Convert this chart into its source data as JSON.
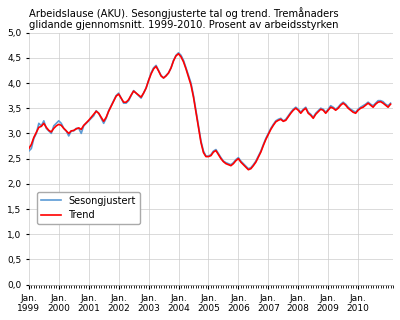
{
  "title": "Arbeidslause (AKU). Sesongjusterte tal og trend. Tremånaders\nglidande gjennomsnitt. 1999-2010. Prosent av arbeidsstyrken",
  "xlabel_years": [
    1999,
    2000,
    2001,
    2002,
    2003,
    2004,
    2005,
    2006,
    2007,
    2008,
    2009,
    2010
  ],
  "ylim": [
    0.0,
    5.0
  ],
  "yticks": [
    0.0,
    0.5,
    1.0,
    1.5,
    2.0,
    2.5,
    3.0,
    3.5,
    4.0,
    4.5,
    5.0
  ],
  "legend_labels": [
    "Sesongjustert",
    "Trend"
  ],
  "line_color_season": "#5B9BD5",
  "line_color_trend": "#FF0000",
  "background_color": "#FFFFFF",
  "grid_color": "#CCCCCC",
  "sesongjustert": [
    2.65,
    2.7,
    2.9,
    3.0,
    3.2,
    3.15,
    3.25,
    3.1,
    3.05,
    3.0,
    3.15,
    3.2,
    3.25,
    3.2,
    3.1,
    3.05,
    2.95,
    3.05,
    3.05,
    3.1,
    3.1,
    3.0,
    3.15,
    3.2,
    3.25,
    3.3,
    3.35,
    3.45,
    3.4,
    3.3,
    3.2,
    3.3,
    3.45,
    3.55,
    3.65,
    3.75,
    3.8,
    3.7,
    3.6,
    3.6,
    3.65,
    3.75,
    3.85,
    3.8,
    3.75,
    3.7,
    3.8,
    3.9,
    4.05,
    4.2,
    4.3,
    4.35,
    4.25,
    4.15,
    4.1,
    4.15,
    4.2,
    4.3,
    4.45,
    4.55,
    4.6,
    4.55,
    4.45,
    4.3,
    4.15,
    4.0,
    3.75,
    3.45,
    3.15,
    2.85,
    2.65,
    2.55,
    2.55,
    2.58,
    2.65,
    2.68,
    2.6,
    2.52,
    2.45,
    2.42,
    2.4,
    2.38,
    2.42,
    2.48,
    2.52,
    2.45,
    2.4,
    2.35,
    2.3,
    2.32,
    2.38,
    2.45,
    2.55,
    2.65,
    2.78,
    2.9,
    3.0,
    3.1,
    3.18,
    3.25,
    3.28,
    3.3,
    3.25,
    3.28,
    3.35,
    3.42,
    3.48,
    3.52,
    3.48,
    3.42,
    3.48,
    3.52,
    3.42,
    3.38,
    3.32,
    3.4,
    3.45,
    3.5,
    3.48,
    3.42,
    3.48,
    3.55,
    3.52,
    3.48,
    3.52,
    3.58,
    3.62,
    3.58,
    3.52,
    3.48,
    3.45,
    3.42,
    3.48,
    3.52,
    3.55,
    3.58,
    3.62,
    3.58,
    3.55,
    3.6,
    3.65,
    3.65,
    3.63,
    3.58,
    3.55,
    3.6
  ],
  "trend": [
    2.7,
    2.78,
    2.92,
    3.02,
    3.12,
    3.14,
    3.2,
    3.12,
    3.06,
    3.03,
    3.1,
    3.15,
    3.18,
    3.16,
    3.1,
    3.05,
    3.0,
    3.05,
    3.06,
    3.09,
    3.11,
    3.08,
    3.16,
    3.21,
    3.26,
    3.32,
    3.38,
    3.44,
    3.4,
    3.32,
    3.24,
    3.32,
    3.44,
    3.54,
    3.64,
    3.74,
    3.78,
    3.7,
    3.62,
    3.62,
    3.67,
    3.76,
    3.84,
    3.8,
    3.76,
    3.72,
    3.8,
    3.9,
    4.05,
    4.18,
    4.28,
    4.33,
    4.24,
    4.14,
    4.1,
    4.14,
    4.2,
    4.3,
    4.44,
    4.54,
    4.58,
    4.52,
    4.42,
    4.28,
    4.12,
    3.96,
    3.72,
    3.42,
    3.12,
    2.82,
    2.62,
    2.54,
    2.54,
    2.56,
    2.63,
    2.66,
    2.58,
    2.5,
    2.44,
    2.4,
    2.38,
    2.36,
    2.4,
    2.46,
    2.5,
    2.43,
    2.38,
    2.33,
    2.28,
    2.3,
    2.36,
    2.43,
    2.53,
    2.63,
    2.76,
    2.88,
    2.98,
    3.08,
    3.16,
    3.23,
    3.26,
    3.28,
    3.24,
    3.26,
    3.33,
    3.4,
    3.46,
    3.5,
    3.46,
    3.4,
    3.46,
    3.5,
    3.4,
    3.36,
    3.3,
    3.38,
    3.43,
    3.48,
    3.46,
    3.4,
    3.46,
    3.52,
    3.5,
    3.46,
    3.5,
    3.56,
    3.6,
    3.56,
    3.5,
    3.46,
    3.42,
    3.4,
    3.46,
    3.5,
    3.52,
    3.56,
    3.6,
    3.56,
    3.52,
    3.58,
    3.62,
    3.63,
    3.6,
    3.56,
    3.52,
    3.58
  ]
}
